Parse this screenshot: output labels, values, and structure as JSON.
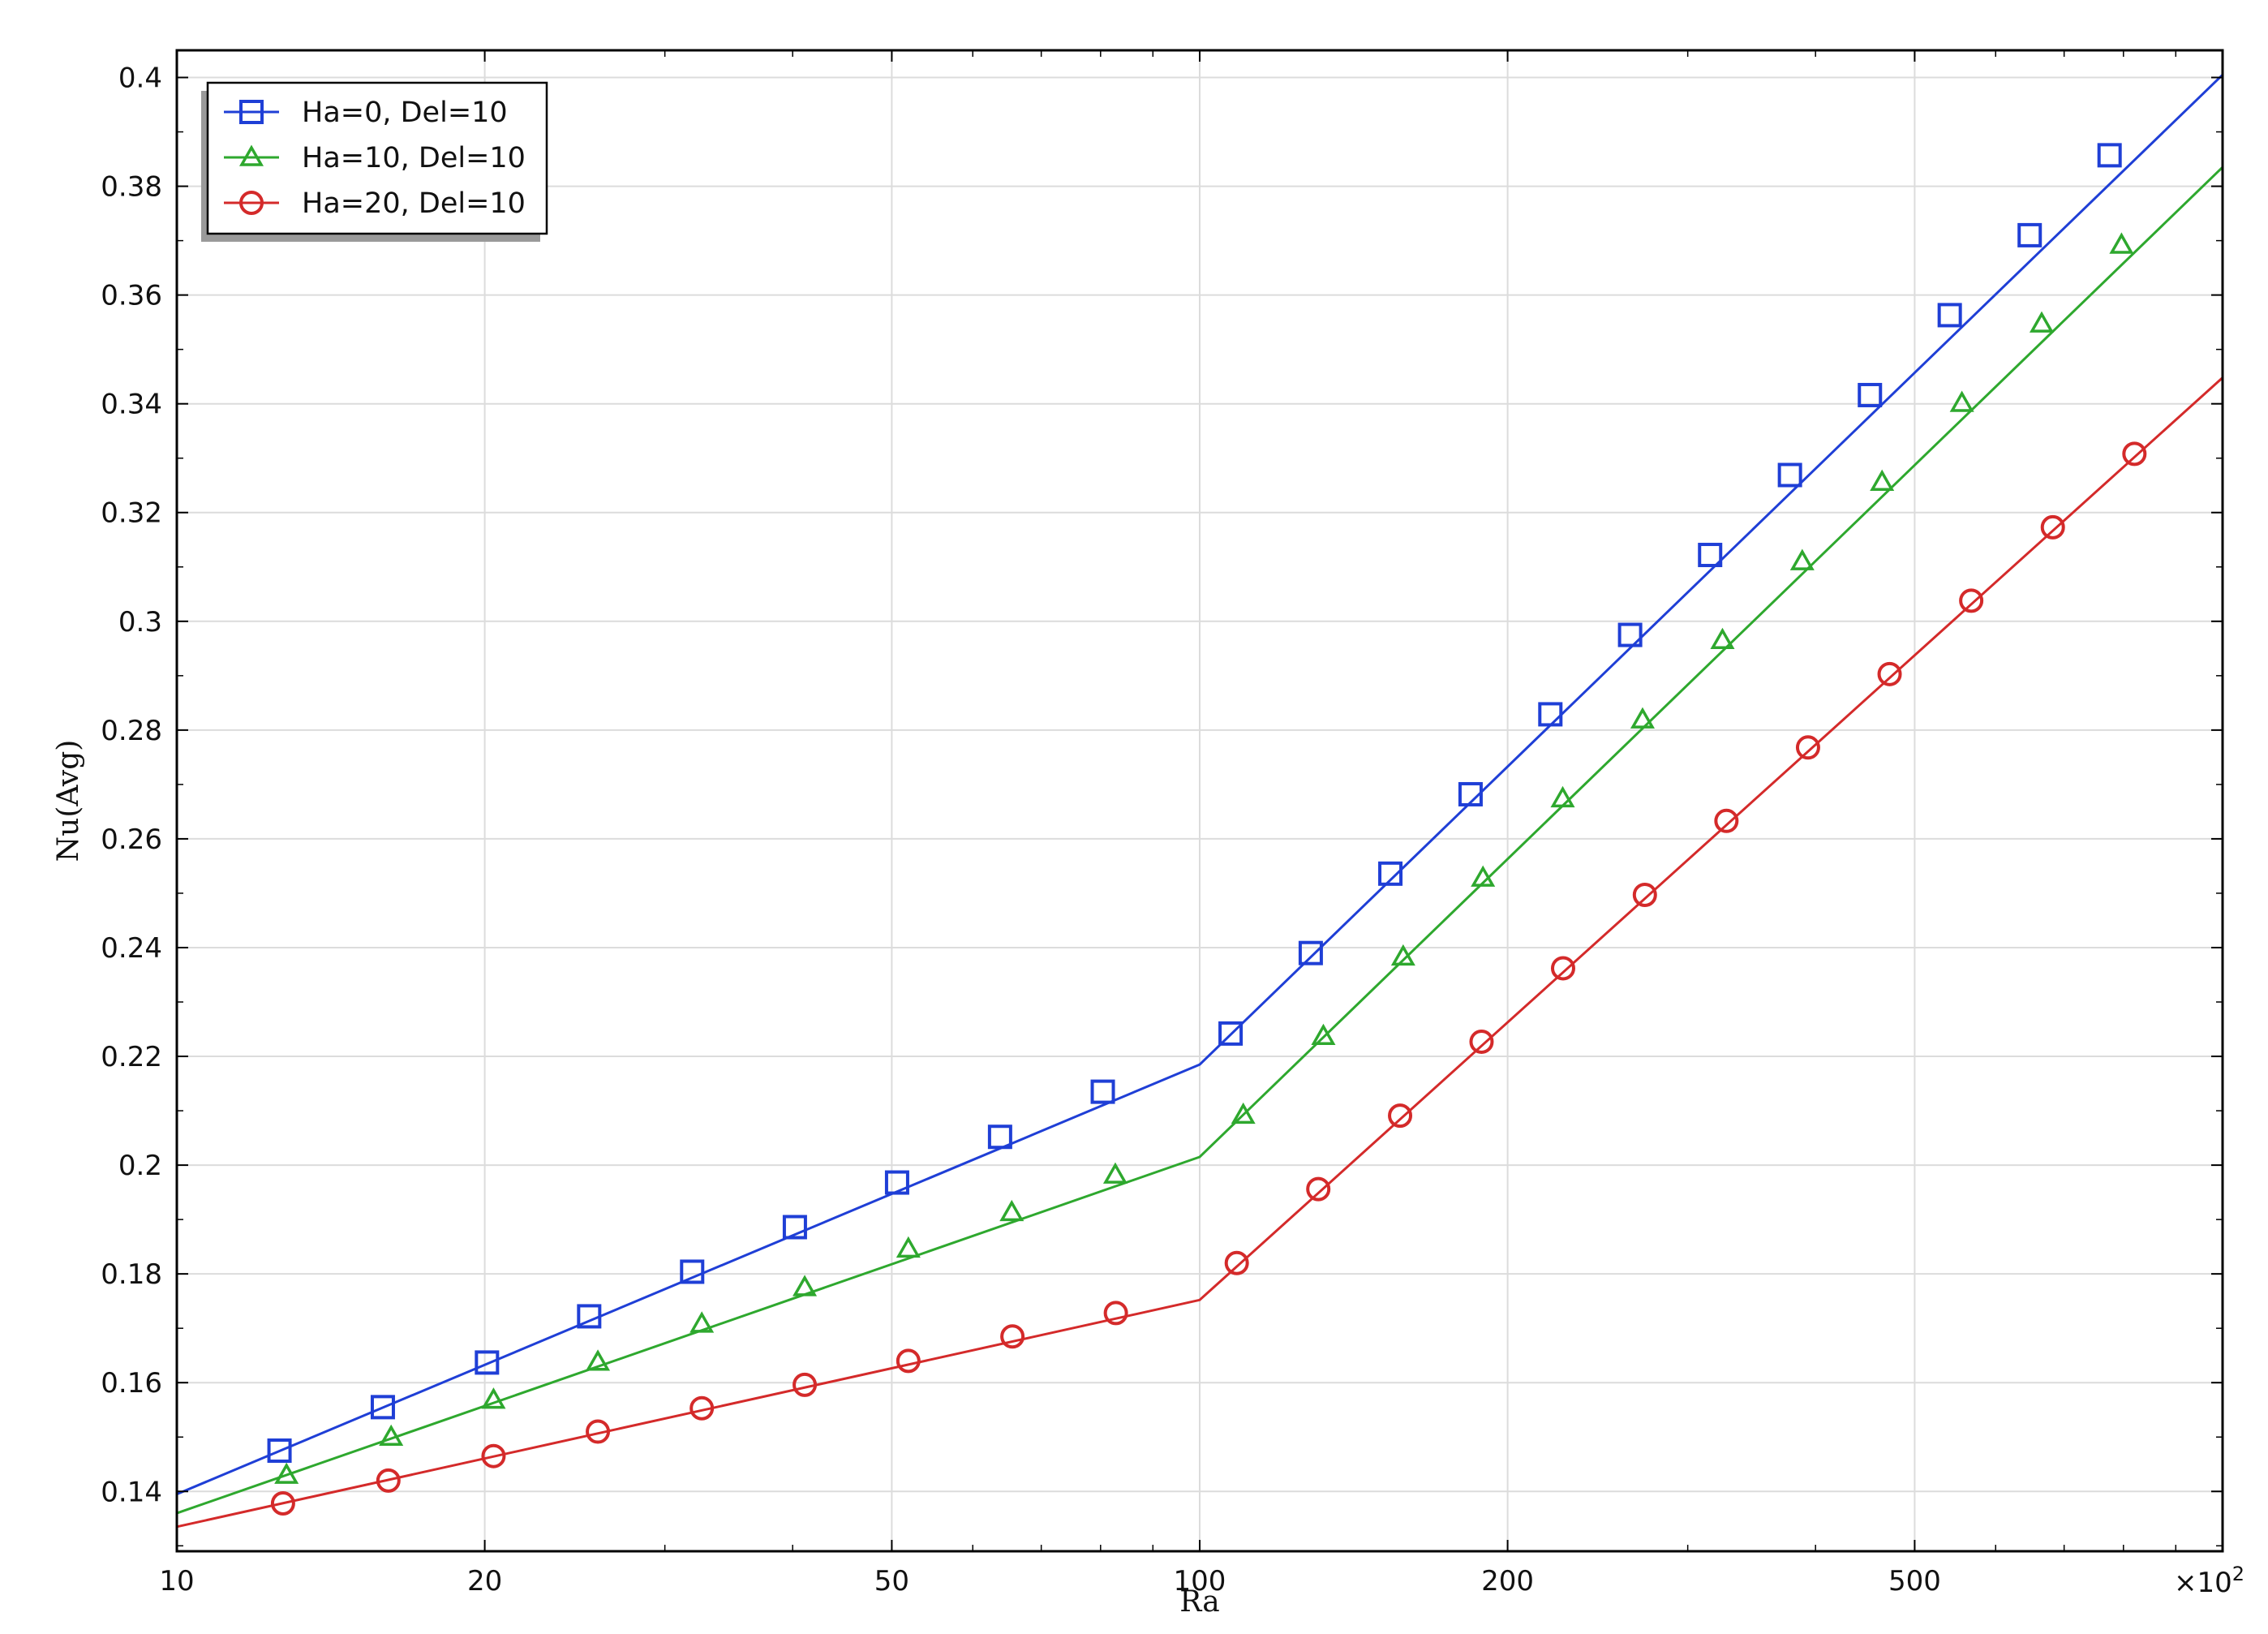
{
  "chart_data": {
    "type": "line",
    "xlabel": "Ra",
    "ylabel": "Nu(Avg)",
    "x_scale": "log",
    "x_multiplier": "×10",
    "x_multiplier_exponent": "2",
    "xlim": [
      10,
      1000
    ],
    "ylim": [
      0.129,
      0.405
    ],
    "x_ticks": [
      {
        "value": 10,
        "label": "10"
      },
      {
        "value": 20,
        "label": "20"
      },
      {
        "value": 50,
        "label": "50"
      },
      {
        "value": 100,
        "label": "100"
      },
      {
        "value": 200,
        "label": "200"
      },
      {
        "value": 500,
        "label": "500"
      }
    ],
    "y_ticks": [
      {
        "value": 0.14,
        "label": "0.14"
      },
      {
        "value": 0.16,
        "label": "0.16"
      },
      {
        "value": 0.18,
        "label": "0.18"
      },
      {
        "value": 0.2,
        "label": "0.2"
      },
      {
        "value": 0.22,
        "label": "0.22"
      },
      {
        "value": 0.24,
        "label": "0.24"
      },
      {
        "value": 0.26,
        "label": "0.26"
      },
      {
        "value": 0.28,
        "label": "0.28"
      },
      {
        "value": 0.3,
        "label": "0.3"
      },
      {
        "value": 0.32,
        "label": "0.32"
      },
      {
        "value": 0.34,
        "label": "0.34"
      },
      {
        "value": 0.36,
        "label": "0.36"
      },
      {
        "value": 0.38,
        "label": "0.38"
      },
      {
        "value": 0.4,
        "label": "0.4"
      }
    ],
    "grid": true,
    "legend_position": "top-left",
    "series": [
      {
        "name": "Ha=0, Del=10",
        "color": "#1f3fd6",
        "marker": "square",
        "line_x": [
          10,
          100,
          1000
        ],
        "line_y": [
          0.1395,
          0.2185,
          0.4005
        ],
        "marker_x": [
          12.6,
          15.9,
          20.1,
          25.3,
          31.9,
          40.2,
          50.6,
          63.8,
          80.4,
          107.2,
          128.4,
          153.6,
          184.0,
          220.2,
          263.5,
          315.5,
          377.6,
          452.1,
          541.1,
          647.8,
          775.4
        ],
        "marker_y": [
          0.1475,
          0.1555,
          0.1637,
          0.1722,
          0.1804,
          0.1886,
          0.1968,
          0.2052,
          0.2135,
          0.2242,
          0.239,
          0.2536,
          0.2682,
          0.2829,
          0.2975,
          0.3122,
          0.3269,
          0.3416,
          0.3563,
          0.371,
          0.3857
        ]
      },
      {
        "name": "Ha=10, Del=10",
        "color": "#2ea82e",
        "marker": "triangle",
        "line_x": [
          10,
          100,
          1000
        ],
        "line_y": [
          0.136,
          0.2015,
          0.3835
        ],
        "marker_x": [
          12.8,
          16.2,
          20.4,
          25.8,
          32.6,
          41.1,
          51.9,
          65.5,
          82.7,
          110.3,
          132.1,
          158.1,
          189.2,
          226.4,
          271.0,
          324.4,
          388.2,
          464.6,
          556.1,
          665.5,
          796.5
        ],
        "marker_y": [
          0.143,
          0.15,
          0.1568,
          0.1638,
          0.1708,
          0.1775,
          0.1846,
          0.1913,
          0.1982,
          0.2092,
          0.2237,
          0.2383,
          0.2528,
          0.2674,
          0.2819,
          0.2965,
          0.311,
          0.3256,
          0.3401,
          0.3547,
          0.3692
        ]
      },
      {
        "name": "Ha=20, Del=10",
        "color": "#d42a2a",
        "marker": "circle",
        "line_x": [
          10,
          100,
          1000
        ],
        "line_y": [
          0.1335,
          0.1752,
          0.3448
        ],
        "marker_x": [
          12.7,
          16.1,
          20.4,
          25.8,
          32.6,
          41.1,
          51.9,
          65.6,
          82.8,
          108.7,
          130.6,
          157.0,
          188.6,
          226.6,
          272.4,
          327.3,
          393.3,
          472.6,
          567.9,
          682.4,
          820.0
        ],
        "marker_y": [
          0.1378,
          0.142,
          0.1465,
          0.151,
          0.1553,
          0.1596,
          0.164,
          0.1685,
          0.1728,
          0.182,
          0.1956,
          0.2091,
          0.2227,
          0.2362,
          0.2497,
          0.2633,
          0.2768,
          0.2903,
          0.3038,
          0.3173,
          0.3308
        ]
      }
    ]
  }
}
